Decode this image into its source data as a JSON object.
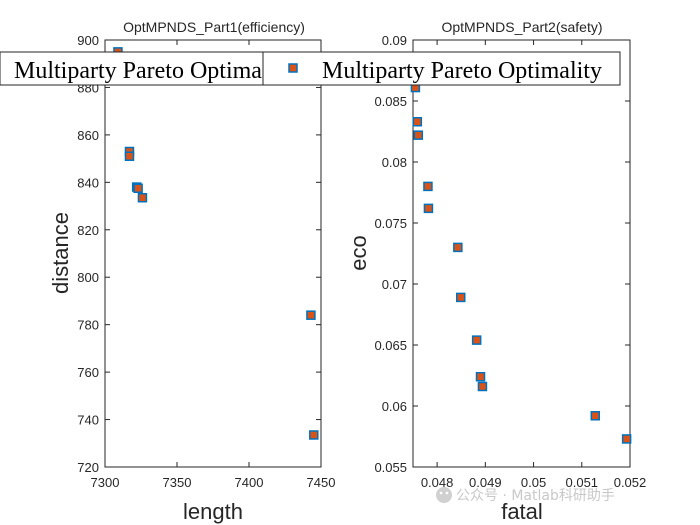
{
  "chart_data": [
    {
      "type": "scatter",
      "title": "OptMPNDS_Part1(efficiency)",
      "xlabel": "length",
      "ylabel": "distance",
      "xlim": [
        7300,
        7450
      ],
      "ylim": [
        720,
        900
      ],
      "xticks": [
        7300,
        7350,
        7400,
        7450
      ],
      "yticks": [
        720,
        740,
        760,
        780,
        800,
        820,
        840,
        860,
        880,
        900
      ],
      "grid": false,
      "legend": {
        "location": "top",
        "entries": [
          "Multiparty Pareto Optimality"
        ]
      },
      "series": [
        {
          "name": "Multiparty Pareto Optimality",
          "marker_edge_color": "#0072BD",
          "marker_face_color": "#D95319",
          "points": [
            {
              "x": 7309,
              "y": 895
            },
            {
              "x": 7317,
              "y": 853
            },
            {
              "x": 7317,
              "y": 851
            },
            {
              "x": 7322,
              "y": 838
            },
            {
              "x": 7323,
              "y": 837.5
            },
            {
              "x": 7326,
              "y": 833.5
            },
            {
              "x": 7443,
              "y": 784
            },
            {
              "x": 7445,
              "y": 733.5
            }
          ]
        }
      ]
    },
    {
      "type": "scatter",
      "title": "OptMPNDS_Part2(safety)",
      "xlabel": "fatal",
      "ylabel": "eco",
      "xlim": [
        0.0475,
        0.052
      ],
      "ylim": [
        0.055,
        0.09
      ],
      "xticks": [
        0.048,
        0.049,
        0.05,
        0.051,
        0.052
      ],
      "xtick_labels": [
        "0.048",
        "0.049",
        "0.05",
        "0.051",
        "0.052"
      ],
      "yticks": [
        0.055,
        0.06,
        0.065,
        0.07,
        0.075,
        0.08,
        0.085,
        0.09
      ],
      "ytick_labels": [
        "0.055",
        "0.06",
        "0.065",
        "0.07",
        "0.075",
        "0.08",
        "0.085",
        "0.09"
      ],
      "grid": false,
      "legend": {
        "location": "top",
        "entries": [
          "Multiparty Pareto Optimality"
        ]
      },
      "series": [
        {
          "name": "Multiparty Pareto Optimality",
          "marker_edge_color": "#0072BD",
          "marker_face_color": "#D95319",
          "points": [
            {
              "x": 0.04755,
              "y": 0.0861
            },
            {
              "x": 0.04759,
              "y": 0.0833
            },
            {
              "x": 0.04761,
              "y": 0.0822
            },
            {
              "x": 0.04781,
              "y": 0.078
            },
            {
              "x": 0.04782,
              "y": 0.0762
            },
            {
              "x": 0.04843,
              "y": 0.073
            },
            {
              "x": 0.04849,
              "y": 0.0689
            },
            {
              "x": 0.04882,
              "y": 0.0654
            },
            {
              "x": 0.0489,
              "y": 0.0624
            },
            {
              "x": 0.04894,
              "y": 0.0616
            },
            {
              "x": 0.05128,
              "y": 0.0592
            },
            {
              "x": 0.05193,
              "y": 0.0573
            }
          ]
        }
      ]
    }
  ],
  "legend_left": {
    "label": "Multiparty Pareto Optima"
  },
  "legend_right": {
    "label": "Multiparty Pareto Optimality"
  },
  "watermark": {
    "text": "公众号 · Matlab科研助手"
  }
}
